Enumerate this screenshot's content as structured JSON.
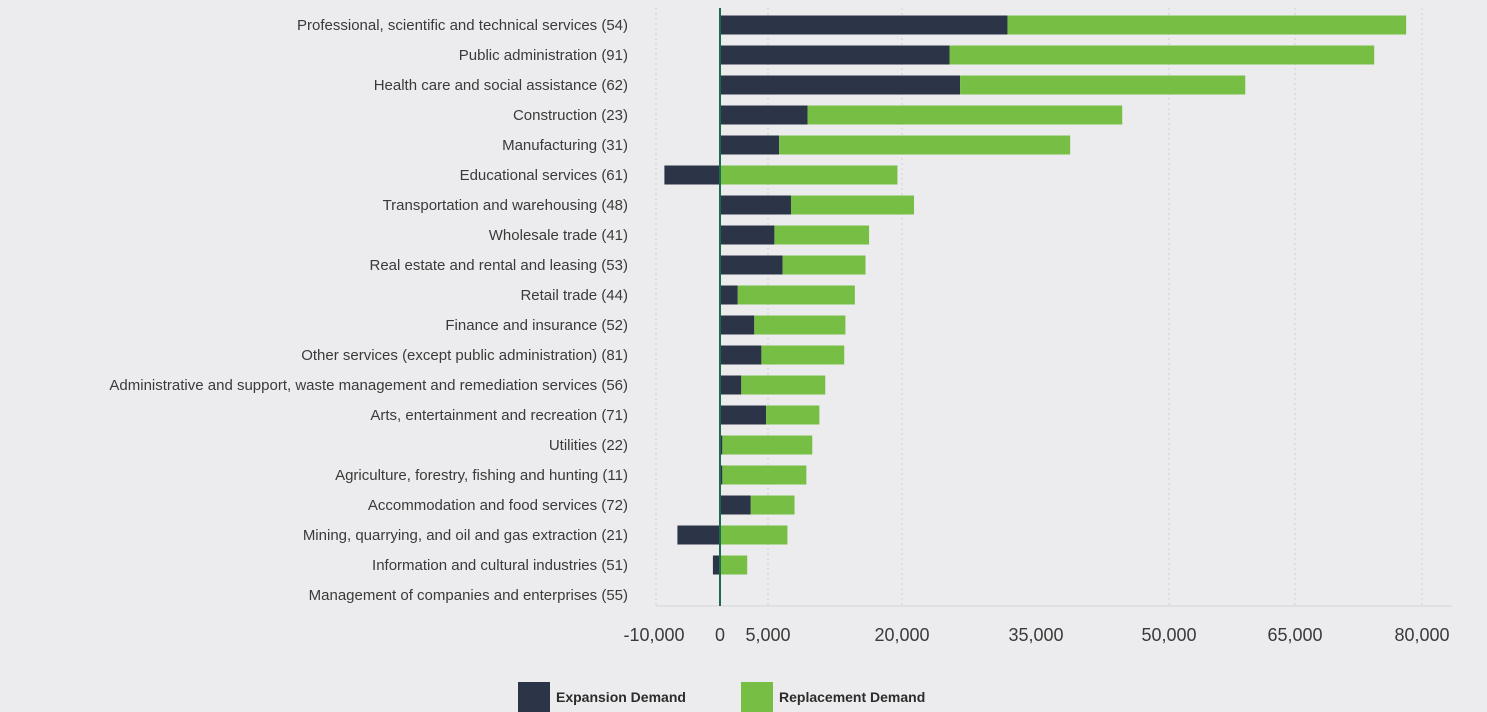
{
  "chart_data": {
    "type": "bar",
    "stacked": true,
    "orientation": "horizontal",
    "categories": [
      "Professional, scientific and technical services (54)",
      "Public administration (91)",
      "Health care and social assistance (62)",
      "Construction (23)",
      "Manufacturing (31)",
      "Educational services (61)",
      "Transportation and warehousing (48)",
      "Wholesale trade (41)",
      "Real estate and rental and leasing (53)",
      "Retail trade (44)",
      "Finance and insurance (52)",
      "Other services (except public administration) (81)",
      "Administrative and support, waste management and remediation services (56)",
      "Arts, entertainment and recreation (71)",
      "Utilities (22)",
      "Agriculture, forestry, fishing and hunting (11)",
      "Accommodation and food services (72)",
      "Mining, quarrying, and oil and gas extraction (21)",
      "Information and cultural industries (51)",
      "Management of companies and enterprises (55)"
    ],
    "series": [
      {
        "name": "Expansion Demand",
        "color": "#2b3547",
        "values": [
          24300,
          19400,
          20300,
          7400,
          5000,
          -4700,
          6000,
          4600,
          5300,
          1500,
          2900,
          3500,
          1800,
          3900,
          200,
          200,
          2600,
          -3600,
          -600,
          0
        ]
      },
      {
        "name": "Replacement Demand",
        "color": "#76bf44",
        "values": [
          33700,
          35900,
          24100,
          26600,
          24600,
          15000,
          10400,
          8000,
          7000,
          9900,
          7700,
          7000,
          7100,
          4500,
          7600,
          7100,
          3700,
          5700,
          2300,
          0
        ]
      }
    ],
    "x_ticks": [
      "-10,000",
      "0",
      "5,000",
      "20,000",
      "35,000",
      "50,000",
      "65,000",
      "80,000"
    ],
    "xlim": [
      -5400,
      61200
    ],
    "grid": "vertical dotted",
    "legend_position": "bottom-center"
  }
}
